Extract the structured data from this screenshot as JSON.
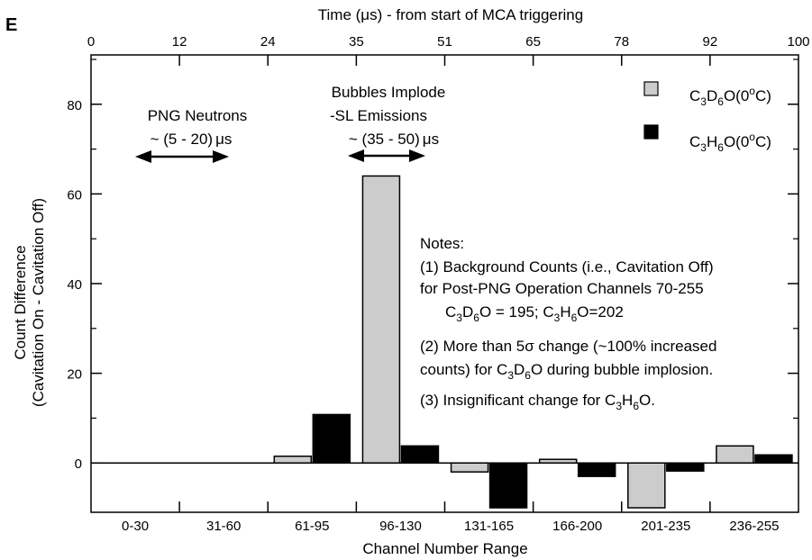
{
  "panel_letter": "E",
  "chart_data": {
    "type": "bar",
    "xlabel": "Channel Number Range",
    "ylabel_line1": "Count  Difference",
    "ylabel_line2": "(Cavitation On - Cavitation Off)",
    "top_axis_label": "Time (μs) - from start of MCA triggering",
    "top_ticks": [
      "0",
      "12",
      "24",
      "35",
      "51",
      "65",
      "78",
      "92",
      "100"
    ],
    "categories": [
      "0-30",
      "31-60",
      "61-95",
      "96-130",
      "131-165",
      "166-200",
      "201-235",
      "236-255"
    ],
    "ylim": [
      -11,
      91
    ],
    "yticks": [
      "0",
      "20",
      "40",
      "60",
      "80"
    ],
    "grid": false,
    "legend_position": "top-right",
    "series": [
      {
        "name": "C3D6O(0oC)",
        "color": "#cccccc",
        "values": [
          0,
          0,
          1.5,
          64,
          -2,
          0.8,
          -10,
          3.8
        ]
      },
      {
        "name": "C3H6O(0oC)",
        "color": "#000000",
        "values": [
          0,
          0,
          10.8,
          3.8,
          -10,
          -3,
          -1.8,
          1.8
        ]
      }
    ],
    "legend": {
      "d6": {
        "pre": "C",
        "s1": "3",
        "mid": "D",
        "s2": "6",
        "post": "O(0",
        "sup": "o",
        "end": "C)"
      },
      "h6": {
        "pre": "C",
        "s1": "3",
        "mid": "H",
        "s2": "6",
        "post": "O(0",
        "sup": "o",
        "end": "C)"
      }
    },
    "annotations": {
      "png_line1": "PNG Neutrons",
      "png_line2_a": "~ (5 - 20)",
      "png_line2_b": "μs",
      "bub_line1": "Bubbles Implode",
      "bub_line2": "-SL Emissions",
      "bub_line3_a": "~ (35 - 50)",
      "bub_line3_b": "μs"
    },
    "notes": {
      "title": "Notes:",
      "n1_line1": "(1) Background Counts (i.e., Cavitation Off)",
      "n1_line2": "for Post-PNG Operation Channels 70-255",
      "n1_line3": {
        "a": "C",
        "b": "3",
        "c": "D",
        "d": "6",
        "e": "O = 195; C",
        "f": "3",
        "g": "H",
        "h": "6",
        "i": "O=202"
      },
      "n2_line1": "(2) More than 5σ change (~100%  increased",
      "n2_line2": {
        "a": "counts)  for C",
        "b": "3",
        "c": "D",
        "d": "6",
        "e": "O during bubble implosion."
      },
      "n3": {
        "a": "(3) Insignificant change for C",
        "b": "3",
        "c": "H",
        "d": "6",
        "e": "O."
      }
    }
  }
}
